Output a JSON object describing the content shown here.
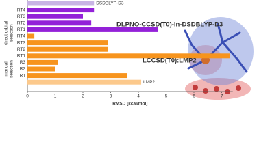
{
  "chart_data": {
    "type": "bar",
    "orientation": "horizontal",
    "categories": [
      null,
      "RT4",
      "RT3",
      "RT2",
      "RT1",
      "RT4",
      "RT3",
      "RT2",
      "RT1",
      "R3",
      "R2",
      "R1",
      null
    ],
    "values": [
      2.4,
      2.4,
      2.0,
      2.3,
      4.7,
      0.25,
      2.9,
      2.9,
      7.3,
      1.1,
      1.0,
      3.6,
      4.1
    ],
    "colors": [
      "#c8b4e4",
      "#9321d8",
      "#9321d8",
      "#9321d8",
      "#9321d8",
      "#f7941d",
      "#f7941d",
      "#f7941d",
      "#f7941d",
      "#f7941d",
      "#f7941d",
      "#f7941d",
      "#fcc98c"
    ],
    "bar_labels": [
      "DSDBLYP-D3",
      null,
      null,
      null,
      null,
      null,
      null,
      null,
      null,
      null,
      null,
      null,
      "LMP2"
    ],
    "series_titles": [
      {
        "text": "DLPNO-CCSD(T0)-in-DSDBLYP-D3",
        "color": "#9321d8"
      },
      {
        "text": "LCCSD(T0):LMP2",
        "color": "#f7941d"
      }
    ],
    "group_labels": [
      [
        "direct orbital",
        "selection"
      ],
      [
        "manual",
        "selection"
      ]
    ],
    "x_label": "RMSD [kcal/mol]",
    "xlim": [
      0,
      7.4
    ],
    "xticks": [
      0,
      1,
      2,
      3,
      4,
      5,
      6,
      7
    ]
  }
}
